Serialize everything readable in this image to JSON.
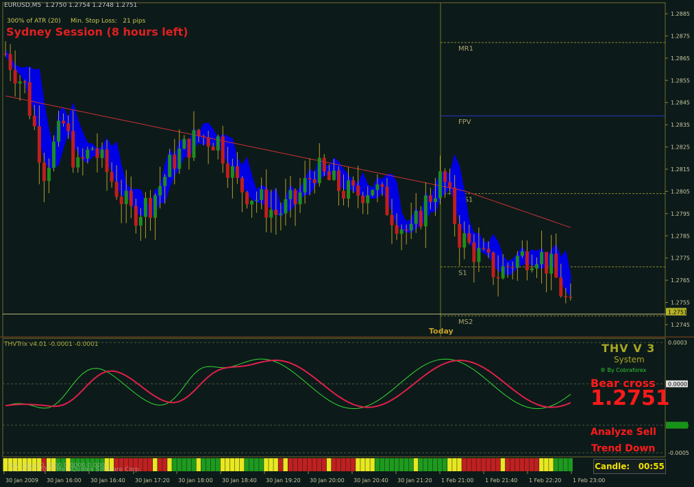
{
  "header": {
    "symbol_line": "EURUSD,M5  1.2750 1.2754 1.2748 1.2751",
    "atr_line": "300% of ATR (20)     Min. Stop Loss:   21 pips",
    "session": "Sydney Session (8 hours left)"
  },
  "indicator": {
    "name_line": "THVTrix v4.01 -0.0001 -0.0001",
    "brand_title": "THV V 3",
    "brand_sub": "System",
    "brand_by": "® By Cobraforex",
    "bear_cross": "Bear cross",
    "price_big": "1.2751",
    "analyze": "Analyze Sell",
    "trend": "Trend Down",
    "bottom_overlay": "THV Trend 0.0000 0.0000 0.0000",
    "copyright": "(C) 2001-2009 MetaQuotes Software Corp."
  },
  "candle_timer": "Candle:   00:55",
  "today_label": "Today",
  "colors": {
    "background": "#0d1a1a",
    "bull": "#1e8c1e",
    "bear": "#c01e1e",
    "wick": "#b4a028",
    "cloud": "#0000ee",
    "ma": "#c83232",
    "trix_fast": "#33dd33",
    "trix_slow": "#e0204a",
    "level_line": "#707a1e",
    "text_dim": "#a8a860",
    "alert_red": "#ff1a1a",
    "brand": "#a8a820"
  },
  "chart_data": [
    {
      "type": "candlestick",
      "title": "EURUSD,M5",
      "ylim": [
        1.274,
        1.2895
      ],
      "y_ticks": [
        "1.2885",
        "1.2875",
        "1.2865",
        "1.2855",
        "1.2845",
        "1.2835",
        "1.2825",
        "1.2815",
        "1.2805",
        "1.2795",
        "1.2785",
        "1.2775",
        "1.2765",
        "1.2755",
        "1.2745"
      ],
      "current_price": "1.2751",
      "levels": [
        {
          "name": "MR1",
          "value": 1.2872
        },
        {
          "name": "FPV",
          "value": 1.2839
        },
        {
          "name": "MS1",
          "value": 1.2804
        },
        {
          "name": "S1",
          "value": 1.2771
        },
        {
          "name": "MS2",
          "value": 1.2749
        }
      ],
      "series": [
        {
          "kind": "candles",
          "count": 118
        },
        {
          "kind": "moving-average"
        },
        {
          "kind": "cloud"
        }
      ]
    },
    {
      "type": "line",
      "title": "THVTrix v4.01",
      "y_ticks": [
        "0.0003",
        "0.0000",
        "-0.0003",
        "-0.0005"
      ],
      "ylim": [
        -0.00055,
        0.0003
      ],
      "series": [
        {
          "kind": "fast"
        },
        {
          "kind": "slow"
        }
      ]
    },
    {
      "type": "heatmap",
      "title": "THV Trend",
      "bars": 118
    }
  ],
  "x_ticks": [
    "30 Jan 2009",
    "30 Jan 16:00",
    "30 Jan 16:40",
    "30 Jan 17:20",
    "30 Jan 18:00",
    "30 Jan 18:40",
    "30 Jan 19:20",
    "30 Jan 20:00",
    "30 Jan 20:40",
    "30 Jan 21:20",
    "1 Feb 21:00",
    "1 Feb 21:40",
    "1 Feb 22:20",
    "1 Feb 23:00"
  ]
}
